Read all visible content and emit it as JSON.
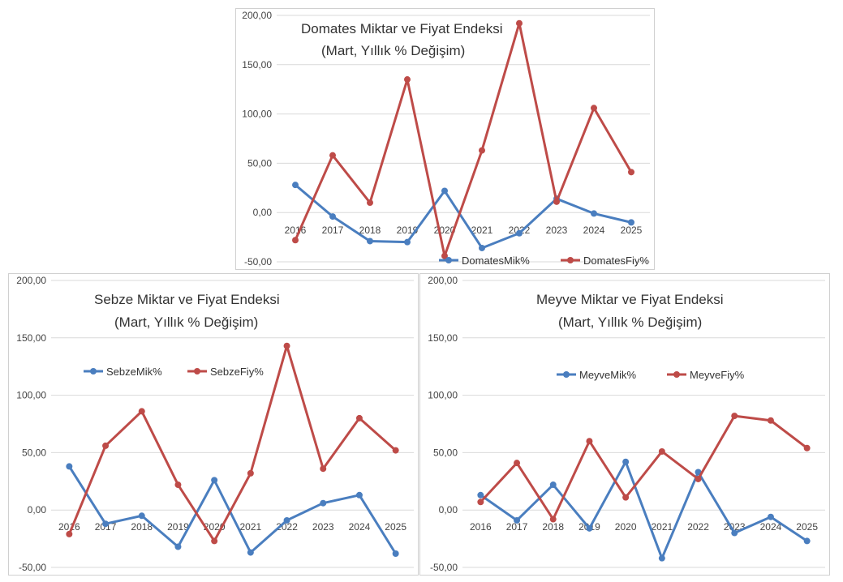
{
  "colors": {
    "mik": "#4a7ebf",
    "fiy": "#be4b48",
    "grid": "#d9d9d9"
  },
  "chart_data": [
    {
      "type": "line",
      "title": "Domates Miktar ve Fiyat Endeksi",
      "subtitle": "(Mart, Yıllık % Değişim)",
      "categories": [
        "2016",
        "2017",
        "2018",
        "2019",
        "2020",
        "2021",
        "2022",
        "2023",
        "2024",
        "2025"
      ],
      "ylim": [
        -50,
        200
      ],
      "yticks": [
        "-50,00",
        "0,00",
        "50,00",
        "100,00",
        "150,00",
        "200,00"
      ],
      "grid": true,
      "legend_position": "bottom-right",
      "series": [
        {
          "name": "DomatesMik%",
          "values": [
            28,
            -4,
            -29,
            -30,
            22,
            -36,
            -21,
            14,
            -1,
            -10
          ]
        },
        {
          "name": "DomatesFiy%",
          "values": [
            -28,
            58,
            10,
            135,
            -44,
            63,
            192,
            11,
            106,
            41
          ]
        }
      ]
    },
    {
      "type": "line",
      "title": "Sebze Miktar ve Fiyat Endeksi",
      "subtitle": "(Mart, Yıllık % Değişim)",
      "categories": [
        "2016",
        "2017",
        "2018",
        "2019",
        "2020",
        "2021",
        "2022",
        "2023",
        "2024",
        "2025"
      ],
      "ylim": [
        -50,
        200
      ],
      "yticks": [
        "-50,00",
        "0,00",
        "50,00",
        "100,00",
        "150,00",
        "200,00"
      ],
      "grid": true,
      "legend_position": "middle-left",
      "series": [
        {
          "name": "SebzeMik%",
          "values": [
            38,
            -12,
            -5,
            -32,
            26,
            -37,
            -9,
            6,
            13,
            -38
          ]
        },
        {
          "name": "SebzeFiy%",
          "values": [
            -21,
            56,
            86,
            22,
            -27,
            32,
            143,
            36,
            80,
            52
          ]
        }
      ]
    },
    {
      "type": "line",
      "title": "Meyve Miktar ve Fiyat Endeksi",
      "subtitle": "(Mart, Yıllık % Değişim)",
      "categories": [
        "2016",
        "2017",
        "2018",
        "2019",
        "2020",
        "2021",
        "2022",
        "2023",
        "2024",
        "2025"
      ],
      "ylim": [
        -50,
        200
      ],
      "yticks": [
        "-50,00",
        "0,00",
        "50,00",
        "100,00",
        "150,00",
        "200,00"
      ],
      "grid": true,
      "legend_position": "middle-center",
      "series": [
        {
          "name": "MeyveMik%",
          "values": [
            13,
            -9,
            22,
            -16,
            42,
            -42,
            33,
            -20,
            -6,
            -27
          ]
        },
        {
          "name": "MeyveFiy%",
          "values": [
            7,
            41,
            -8,
            60,
            11,
            51,
            27,
            82,
            78,
            54
          ]
        }
      ]
    }
  ]
}
